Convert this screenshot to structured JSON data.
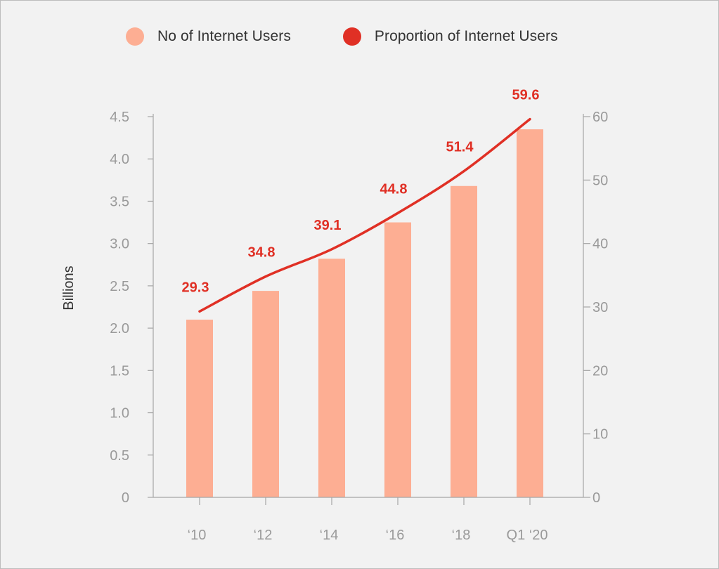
{
  "colors": {
    "background": "#f2f2f2",
    "bar": "#fdae93",
    "line": "#e03025",
    "axis": "#a6a6a6",
    "tick_text": "#9a9a9a"
  },
  "legend": [
    {
      "label": "No of Internet Users",
      "color": "#fdae93"
    },
    {
      "label": "Proportion of Internet Users",
      "color": "#e03025"
    }
  ],
  "chart_data": {
    "type": "bar",
    "categories": [
      "‘10",
      "‘12",
      "‘14",
      "‘16",
      "‘18",
      "Q1 ‘20"
    ],
    "series": [
      {
        "name": "No of Internet Users",
        "type": "bar",
        "axis": "left",
        "values": [
          2.1,
          2.44,
          2.82,
          3.25,
          3.68,
          4.35
        ]
      },
      {
        "name": "Proportion of Internet Users",
        "type": "line",
        "axis": "right",
        "values": [
          29.3,
          34.8,
          39.1,
          44.8,
          51.4,
          59.6
        ],
        "labels": [
          "29.3",
          "34.8",
          "39.1",
          "44.8",
          "51.4",
          "59.6"
        ]
      }
    ],
    "ylabel": "Billions",
    "ylim": [
      0,
      4.5
    ],
    "yticks": [
      "0",
      "0.5",
      "1.0",
      "1.5",
      "2.0",
      "2.5",
      "3.0",
      "3.5",
      "4.0",
      "4.5"
    ],
    "ylim_right": [
      0,
      60
    ],
    "yticks_right": [
      "0",
      "10",
      "20",
      "30",
      "40",
      "50",
      "60"
    ],
    "grid": false,
    "legend_position": "top"
  }
}
